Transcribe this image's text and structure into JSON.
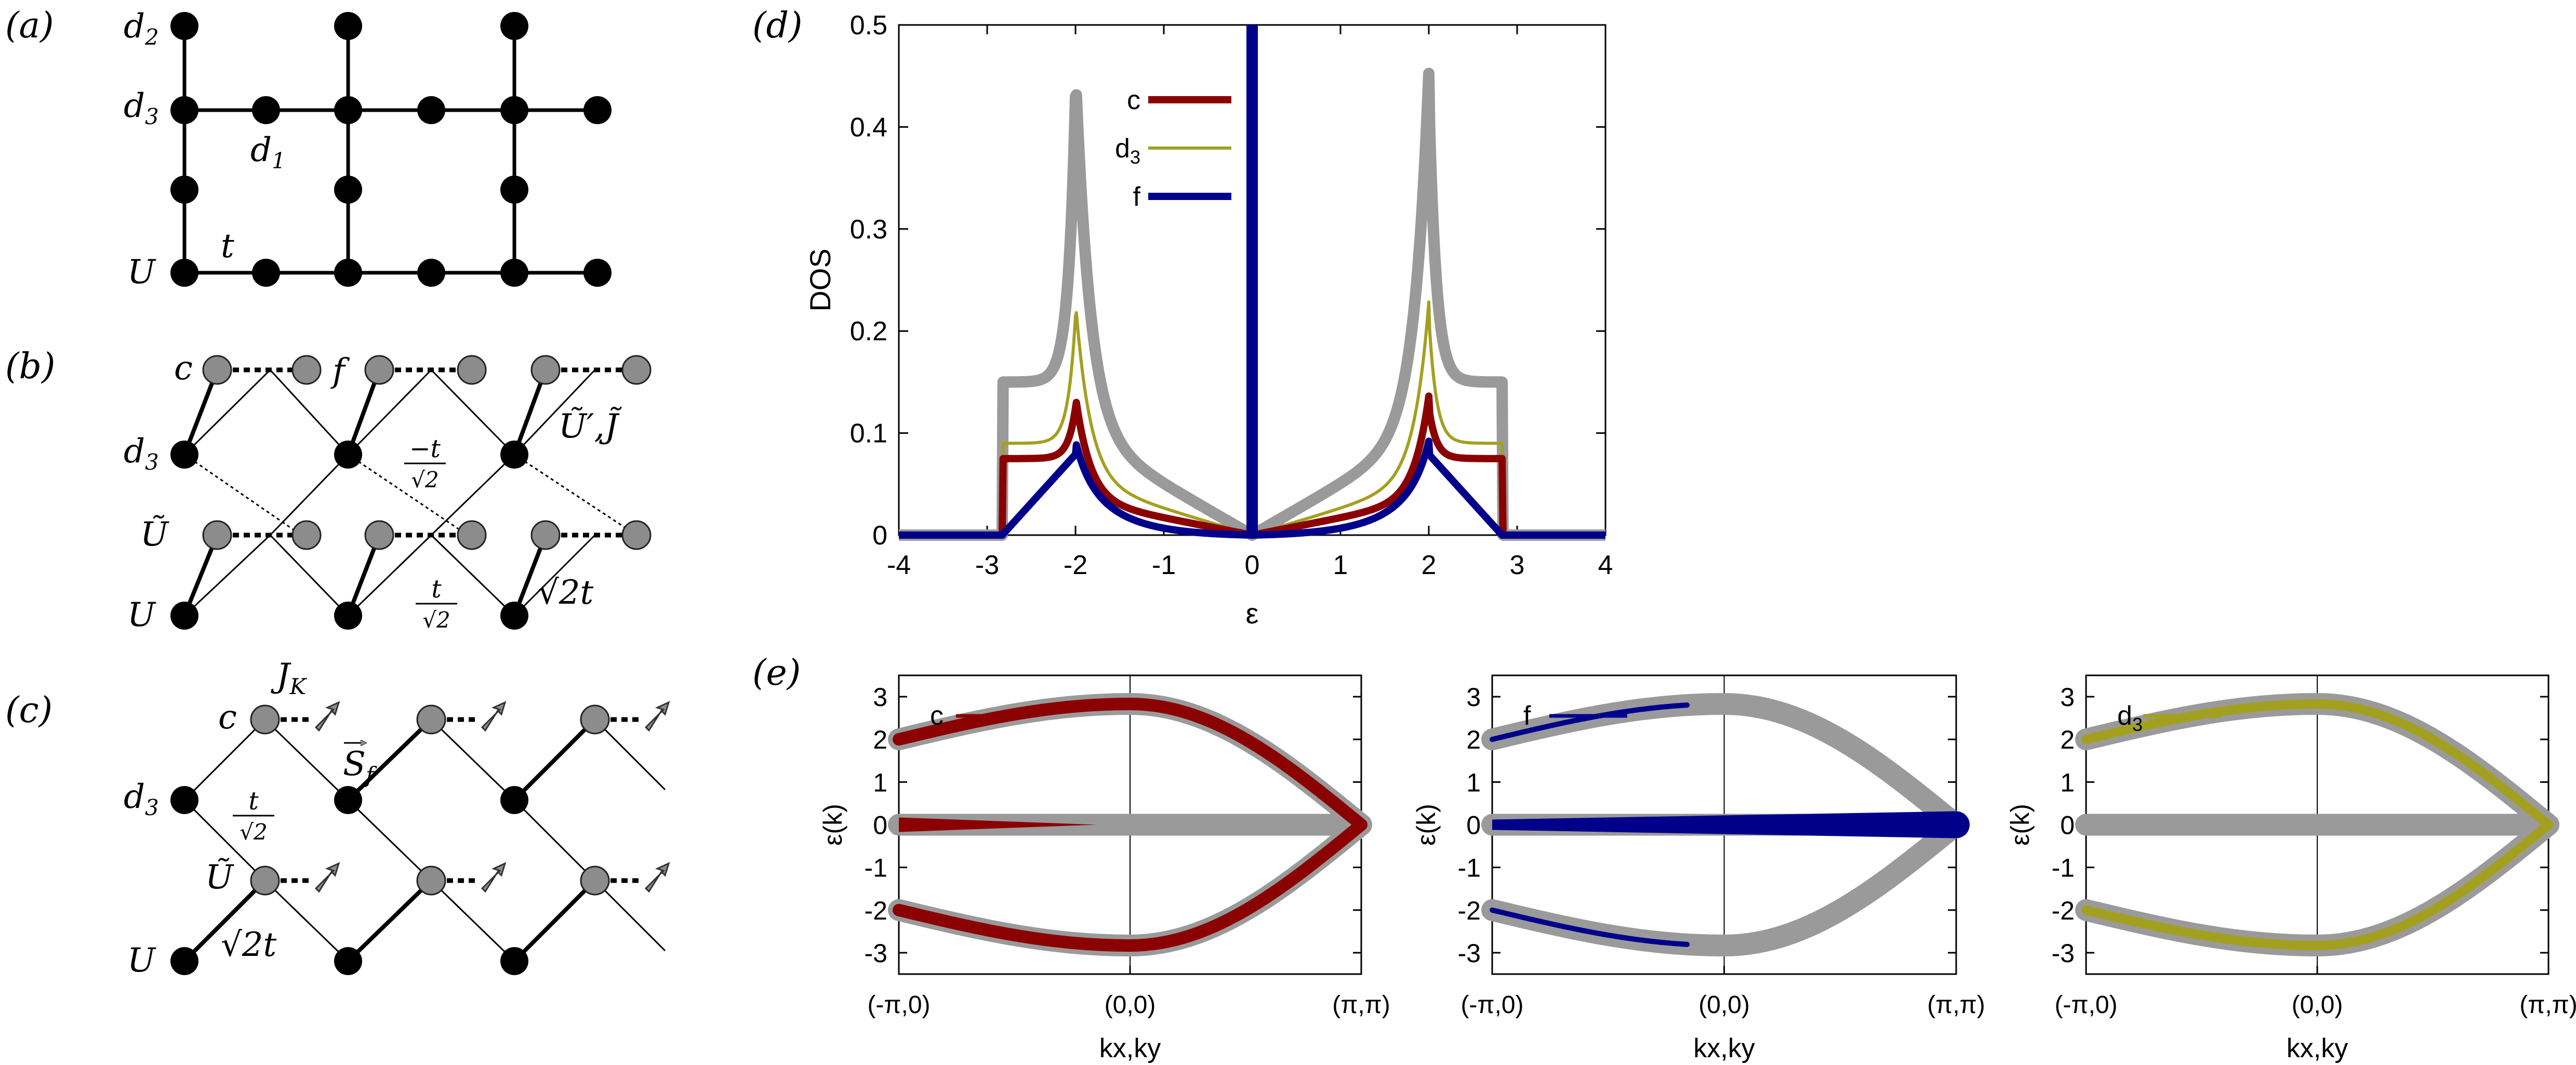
{
  "panels": {
    "a": {
      "tag": "(a)",
      "labels": {
        "d2": "d",
        "d2_sub": "2",
        "d3": "d",
        "d3_sub": "3",
        "d1": "d",
        "d1_sub": "1",
        "t": "t",
        "U": "U"
      }
    },
    "b": {
      "tag": "(b)",
      "labels": {
        "c": "c",
        "f": "f",
        "d3": "d",
        "d3_sub": "3",
        "Ut": "Ũ",
        "U": "U",
        "hop_neg": "−t",
        "hop_pos": "t",
        "sqrt2": "√2",
        "sqrt2t": "√2t",
        "UJ": "Ũ′,J̃"
      }
    },
    "c": {
      "tag": "(c)",
      "labels": {
        "JK": "J",
        "JK_sub": "K",
        "c": "c",
        "Sf": "S",
        "Sf_sub": "f",
        "d3": "d",
        "d3_sub": "3",
        "hop": "t",
        "sqrt2": "√2",
        "Ut": "Ũ",
        "U": "U",
        "sqrt2t": "√2t"
      }
    },
    "d": {
      "tag": "(d)"
    },
    "e": {
      "tag": "(e)"
    }
  },
  "colors": {
    "c": "#8b0000",
    "d3": "#a3a020",
    "f": "#00008b",
    "total": "#9a9a9a",
    "node_black": "#000000",
    "node_gray": "#8c8c8c"
  },
  "chart_data": [
    {
      "type": "line",
      "panel": "d",
      "xlabel": "ε",
      "ylabel": "DOS",
      "xlim": [
        -4,
        4
      ],
      "ylim": [
        0,
        0.5
      ],
      "xticks": [
        "-4",
        "-3",
        "-2",
        "-1",
        "0",
        "1",
        "2",
        "3",
        "4"
      ],
      "yticks": [
        "0",
        "0.1",
        "0.2",
        "0.3",
        "0.4",
        "0.5"
      ],
      "legend": [
        "c",
        "d3"
      ],
      "legend_labels": [
        {
          "text": "c",
          "sub": ""
        },
        {
          "text": "d",
          "sub": "3"
        },
        {
          "text": "f",
          "sub": ""
        }
      ],
      "series": [
        {
          "name": "c",
          "peak": 0.125,
          "plateau": 0.075
        },
        {
          "name": "d3",
          "peak": 0.215,
          "plateau": 0.09
        },
        {
          "name": "f",
          "peak": 0.088,
          "plateau": 0.0
        },
        {
          "name": "total",
          "peak": 0.43,
          "plateau": 0.15
        }
      ],
      "band_edge": 2.83,
      "van_hove": 2.0
    },
    {
      "type": "line",
      "panel": "e1",
      "legend": "c",
      "ylabel": "ε(k)",
      "xlabel": "kx,ky",
      "xticks": [
        "(-π,0)",
        "(0,0)",
        "(π,π)"
      ],
      "yticks": [
        "3",
        "2",
        "1",
        "0",
        "-1",
        "-2",
        "-3"
      ],
      "ylim": [
        -3.5,
        3.5
      ],
      "bands": [
        {
          "name": "upper",
          "start": 2.0,
          "mid": 2.83,
          "end": 0
        },
        {
          "name": "flat",
          "value": 0
        },
        {
          "name": "lower",
          "start": -2.0,
          "mid": -2.83,
          "end": 0
        }
      ]
    },
    {
      "type": "line",
      "panel": "e2",
      "legend": "f",
      "ylabel": "ε(k)",
      "xlabel": "kx,ky",
      "xticks": [
        "(-π,0)",
        "(0,0)",
        "(π,π)"
      ],
      "yticks": [
        "3",
        "2",
        "1",
        "0",
        "-1",
        "-2",
        "-3"
      ],
      "ylim": [
        -3.5,
        3.5
      ]
    },
    {
      "type": "line",
      "panel": "e3",
      "legend": "d3",
      "ylabel": "ε(k)",
      "xlabel": "kx,ky",
      "xticks": [
        "(-π,0)",
        "(0,0)",
        "(π,π)"
      ],
      "yticks": [
        "3",
        "2",
        "1",
        "0",
        "-1",
        "-2",
        "-3"
      ],
      "ylim": [
        -3.5,
        3.5
      ]
    }
  ]
}
